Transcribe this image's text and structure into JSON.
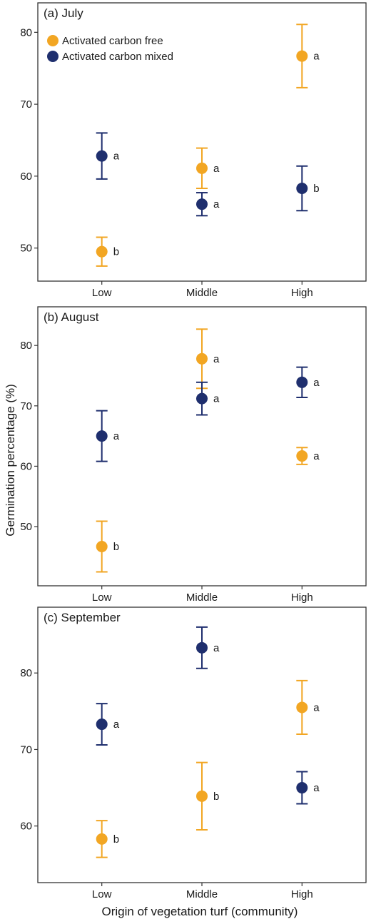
{
  "colors": {
    "free": "#F2A623",
    "mixed": "#1F2F6E",
    "frame": "#333333"
  },
  "axis_titles": {
    "ylabel": "Germination percentage (%)",
    "xlabel": "Origin of vegetation turf (community)"
  },
  "legend": {
    "placement": "top-left of panel (a)",
    "entries": [
      {
        "series": "free",
        "label": "Activated carbon free"
      },
      {
        "series": "mixed",
        "label": "Activated carbon mixed"
      }
    ]
  },
  "chart_data": [
    {
      "type": "scatter",
      "title": "(a) July",
      "categories": [
        "Low",
        "Middle",
        "High"
      ],
      "ylim": [
        45.4,
        84.1
      ],
      "yticks": [
        50,
        60,
        70,
        80
      ],
      "series": [
        {
          "name": "Activated carbon free",
          "color_key": "free",
          "points": [
            {
              "category": "Low",
              "mean": 49.5,
              "lower": 47.5,
              "upper": 51.5,
              "label": "b"
            },
            {
              "category": "Middle",
              "mean": 61.1,
              "lower": 58.3,
              "upper": 63.9,
              "label": "a"
            },
            {
              "category": "High",
              "mean": 76.7,
              "lower": 72.3,
              "upper": 81.1,
              "label": "a"
            }
          ]
        },
        {
          "name": "Activated carbon mixed",
          "color_key": "mixed",
          "points": [
            {
              "category": "Low",
              "mean": 62.8,
              "lower": 59.6,
              "upper": 66.0,
              "label": "a"
            },
            {
              "category": "Middle",
              "mean": 56.1,
              "lower": 54.5,
              "upper": 57.7,
              "label": "a"
            },
            {
              "category": "High",
              "mean": 58.3,
              "lower": 55.2,
              "upper": 61.4,
              "label": "b"
            }
          ]
        }
      ]
    },
    {
      "type": "scatter",
      "title": "(b) August",
      "categories": [
        "Low",
        "Middle",
        "High"
      ],
      "ylim": [
        40.2,
        86.4
      ],
      "yticks": [
        50,
        60,
        70,
        80
      ],
      "series": [
        {
          "name": "Activated carbon free",
          "color_key": "free",
          "points": [
            {
              "category": "Low",
              "mean": 46.7,
              "lower": 42.5,
              "upper": 50.9,
              "label": "b"
            },
            {
              "category": "Middle",
              "mean": 77.8,
              "lower": 72.9,
              "upper": 82.7,
              "label": "a"
            },
            {
              "category": "High",
              "mean": 61.7,
              "lower": 60.3,
              "upper": 63.1,
              "label": "a"
            }
          ]
        },
        {
          "name": "Activated carbon mixed",
          "color_key": "mixed",
          "points": [
            {
              "category": "Low",
              "mean": 65.0,
              "lower": 60.8,
              "upper": 69.2,
              "label": "a"
            },
            {
              "category": "Middle",
              "mean": 71.2,
              "lower": 68.5,
              "upper": 73.9,
              "label": "a"
            },
            {
              "category": "High",
              "mean": 73.9,
              "lower": 71.4,
              "upper": 76.4,
              "label": "a"
            }
          ]
        }
      ]
    },
    {
      "type": "scatter",
      "title": "(c) September",
      "categories": [
        "Low",
        "Middle",
        "High"
      ],
      "ylim": [
        52.6,
        88.6
      ],
      "yticks": [
        60,
        70,
        80
      ],
      "series": [
        {
          "name": "Activated carbon free",
          "color_key": "free",
          "points": [
            {
              "category": "Low",
              "mean": 58.3,
              "lower": 55.9,
              "upper": 60.7,
              "label": "b"
            },
            {
              "category": "Middle",
              "mean": 63.9,
              "lower": 59.5,
              "upper": 68.3,
              "label": "b"
            },
            {
              "category": "High",
              "mean": 75.5,
              "lower": 72.0,
              "upper": 79.0,
              "label": "a"
            }
          ]
        },
        {
          "name": "Activated carbon mixed",
          "color_key": "mixed",
          "points": [
            {
              "category": "Low",
              "mean": 73.3,
              "lower": 70.6,
              "upper": 76.0,
              "label": "a"
            },
            {
              "category": "Middle",
              "mean": 83.3,
              "lower": 80.6,
              "upper": 86.0,
              "label": "a"
            },
            {
              "category": "High",
              "mean": 65.0,
              "lower": 62.9,
              "upper": 67.1,
              "label": "a"
            }
          ]
        }
      ]
    }
  ]
}
